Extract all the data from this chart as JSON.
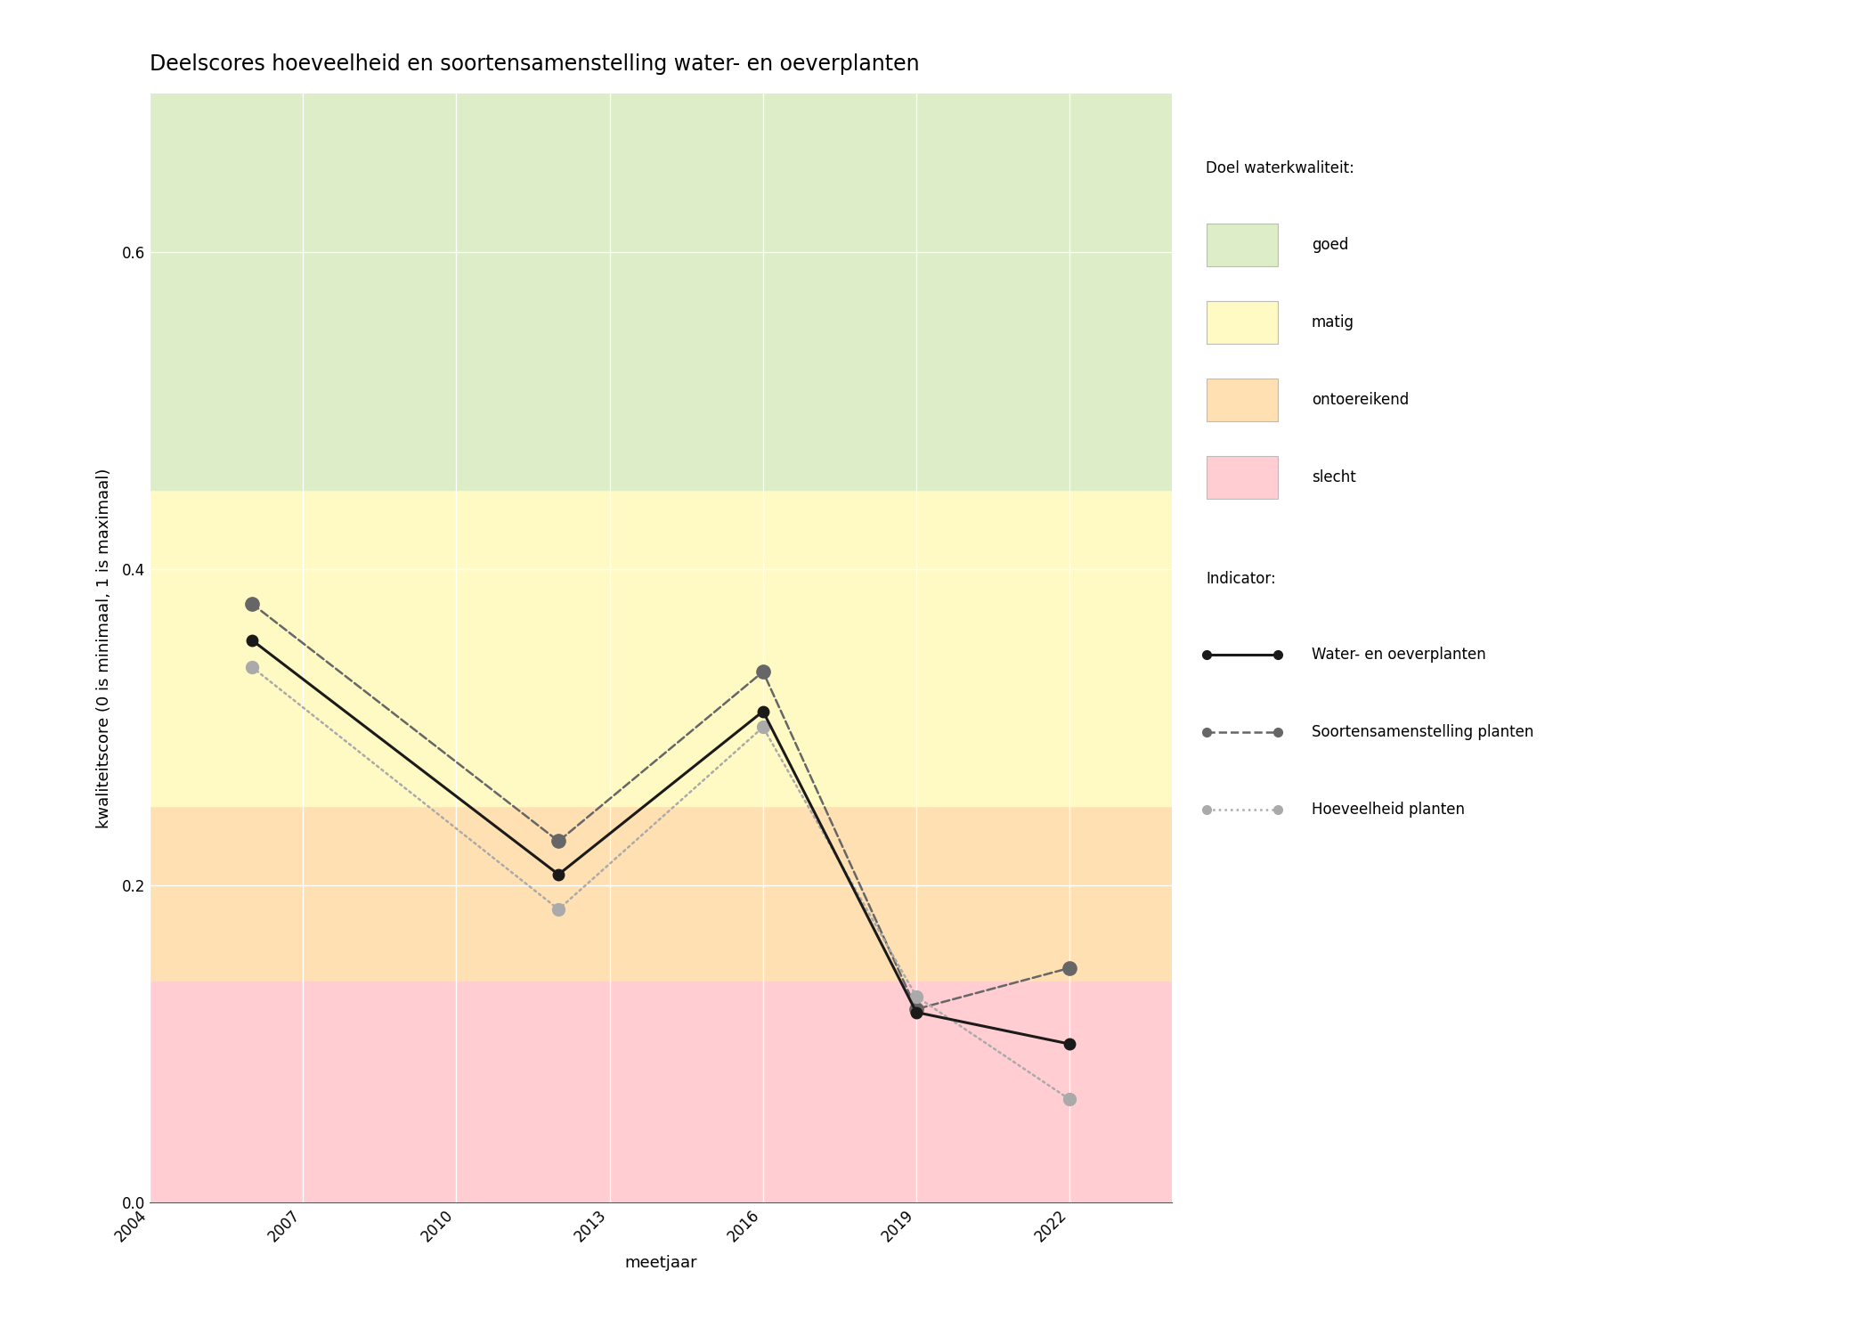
{
  "title": "Deelscores hoeveelheid en soortensamenstelling water- en oeverplanten",
  "xlabel": "meetjaar",
  "ylabel": "kwaliteitscore (0 is minimaal, 1 is maximaal)",
  "xlim": [
    2004,
    2024
  ],
  "ylim": [
    0.0,
    0.7
  ],
  "yticks": [
    0.0,
    0.2,
    0.4,
    0.6
  ],
  "xticks": [
    2004,
    2007,
    2010,
    2013,
    2016,
    2019,
    2022
  ],
  "background_bands": [
    {
      "ymin": 0.0,
      "ymax": 0.14,
      "color": "#ffcdd2",
      "label": "slecht"
    },
    {
      "ymin": 0.14,
      "ymax": 0.25,
      "color": "#ffe0b2",
      "label": "ontoereikend"
    },
    {
      "ymin": 0.25,
      "ymax": 0.45,
      "color": "#fff9c4",
      "label": "matig"
    },
    {
      "ymin": 0.45,
      "ymax": 0.7,
      "color": "#dcedc8",
      "label": "goed"
    }
  ],
  "series": [
    {
      "name": "Water- en oeverplanten",
      "years": [
        2006,
        2012,
        2016,
        2019,
        2022
      ],
      "values": [
        0.355,
        0.207,
        0.31,
        0.12,
        0.1
      ],
      "color": "#1a1a1a",
      "linestyle": "solid",
      "linewidth": 2.2,
      "markersize": 9,
      "marker": "o",
      "zorder": 4
    },
    {
      "name": "Soortensamenstelling planten",
      "years": [
        2006,
        2012,
        2016,
        2019,
        2022
      ],
      "values": [
        0.378,
        0.228,
        0.335,
        0.122,
        0.148
      ],
      "color": "#666666",
      "linestyle": "dashed",
      "linewidth": 1.8,
      "markersize": 11,
      "marker": "o",
      "zorder": 3
    },
    {
      "name": "Hoeveelheid planten",
      "years": [
        2006,
        2012,
        2016,
        2019,
        2022
      ],
      "values": [
        0.338,
        0.185,
        0.3,
        0.13,
        0.065
      ],
      "color": "#aaaaaa",
      "linestyle": "dotted",
      "linewidth": 1.8,
      "markersize": 10,
      "marker": "o",
      "zorder": 3
    }
  ],
  "legend_quality_title": "Doel waterkwaliteit:",
  "legend_quality_items": [
    {
      "label": "goed",
      "color": "#dcedc8"
    },
    {
      "label": "matig",
      "color": "#fff9c4"
    },
    {
      "label": "ontoereikend",
      "color": "#ffe0b2"
    },
    {
      "label": "slecht",
      "color": "#ffcdd2"
    }
  ],
  "legend_indicator_title": "Indicator:",
  "legend_indicator_items": [
    {
      "name": "Water- en oeverplanten",
      "color": "#1a1a1a",
      "linestyle": "solid",
      "lw": 2.2
    },
    {
      "name": "Soortensamenstelling planten",
      "color": "#666666",
      "linestyle": "dashed",
      "lw": 1.8
    },
    {
      "name": "Hoeveelheid planten",
      "color": "#aaaaaa",
      "linestyle": "dotted",
      "lw": 1.8
    }
  ],
  "bg_color": "#ffffff",
  "title_fontsize": 17,
  "label_fontsize": 13,
  "tick_fontsize": 12,
  "legend_fontsize": 12
}
